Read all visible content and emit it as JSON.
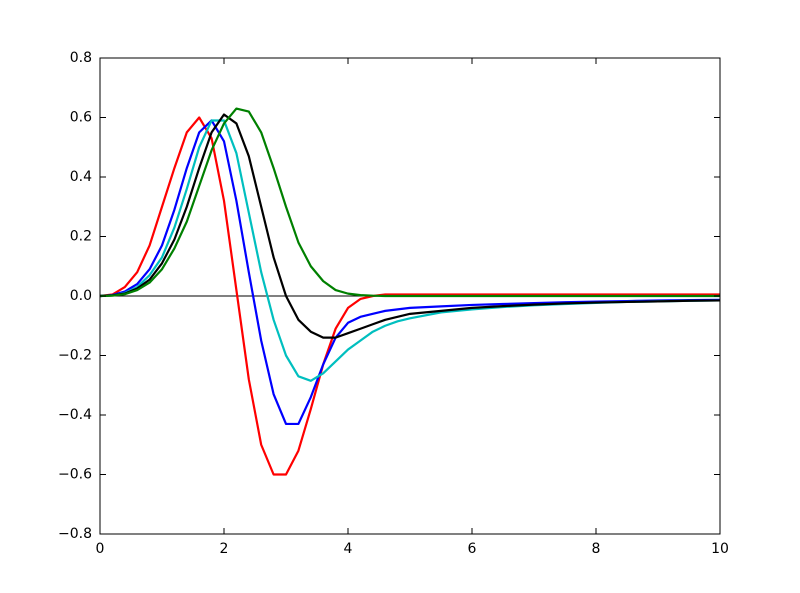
{
  "chart_data": {
    "type": "line",
    "x": [
      0,
      0.2,
      0.4,
      0.6,
      0.8,
      1.0,
      1.2,
      1.4,
      1.6,
      1.8,
      2.0,
      2.2,
      2.4,
      2.6,
      2.8,
      3.0,
      3.2,
      3.4,
      3.6,
      3.8,
      4.0,
      4.2,
      4.4,
      4.6,
      4.8,
      5.0,
      5.5,
      6,
      6.5,
      7,
      7.5,
      8,
      8.5,
      9,
      9.5,
      10
    ],
    "series": [
      {
        "color": "#ff0000",
        "values": [
          0,
          0.005,
          0.03,
          0.08,
          0.17,
          0.3,
          0.43,
          0.55,
          0.6,
          0.53,
          0.32,
          0.02,
          -0.28,
          -0.5,
          -0.6,
          -0.6,
          -0.52,
          -0.38,
          -0.23,
          -0.11,
          -0.04,
          -0.01,
          0,
          0.005,
          0.005,
          0.005,
          0.005,
          0.005,
          0.005,
          0.005,
          0.005,
          0.005,
          0.005,
          0.005,
          0.005,
          0.005
        ]
      },
      {
        "color": "#0000ff",
        "values": [
          0,
          0.003,
          0.015,
          0.04,
          0.09,
          0.17,
          0.29,
          0.43,
          0.55,
          0.59,
          0.52,
          0.32,
          0.08,
          -0.15,
          -0.33,
          -0.43,
          -0.43,
          -0.34,
          -0.23,
          -0.14,
          -0.09,
          -0.07,
          -0.06,
          -0.05,
          -0.045,
          -0.04,
          -0.035,
          -0.03,
          -0.027,
          -0.024,
          -0.021,
          -0.019,
          -0.017,
          -0.015,
          -0.014,
          -0.013
        ]
      },
      {
        "color": "#00bfbf",
        "values": [
          0,
          0.002,
          0.01,
          0.03,
          0.07,
          0.13,
          0.23,
          0.36,
          0.5,
          0.59,
          0.59,
          0.48,
          0.28,
          0.08,
          -0.08,
          -0.2,
          -0.27,
          -0.285,
          -0.26,
          -0.22,
          -0.18,
          -0.15,
          -0.12,
          -0.1,
          -0.085,
          -0.075,
          -0.055,
          -0.045,
          -0.037,
          -0.031,
          -0.027,
          -0.023,
          -0.02,
          -0.018,
          -0.016,
          -0.015
        ]
      },
      {
        "color": "#000000",
        "values": [
          0,
          0.002,
          0.008,
          0.025,
          0.055,
          0.11,
          0.19,
          0.3,
          0.43,
          0.55,
          0.61,
          0.58,
          0.47,
          0.3,
          0.13,
          0.0,
          -0.08,
          -0.12,
          -0.14,
          -0.14,
          -0.125,
          -0.11,
          -0.095,
          -0.08,
          -0.07,
          -0.06,
          -0.05,
          -0.04,
          -0.034,
          -0.029,
          -0.025,
          -0.022,
          -0.02,
          -0.018,
          -0.016,
          -0.015
        ]
      },
      {
        "color": "#008000",
        "values": [
          0,
          0.001,
          0.006,
          0.02,
          0.045,
          0.09,
          0.16,
          0.25,
          0.37,
          0.49,
          0.58,
          0.63,
          0.62,
          0.55,
          0.43,
          0.3,
          0.18,
          0.1,
          0.05,
          0.02,
          0.008,
          0.003,
          0.001,
          0,
          0,
          0,
          0,
          0,
          0,
          0,
          0,
          0,
          0,
          0,
          0,
          0
        ]
      }
    ],
    "hline": 0,
    "xlim": [
      0,
      10
    ],
    "xticks": [
      0,
      2,
      4,
      6,
      8,
      10
    ],
    "ylim": [
      -0.8,
      0.8
    ],
    "yticks": [
      {
        "value": -0.8,
        "label": "−0.8"
      },
      {
        "value": -0.6,
        "label": "−0.6"
      },
      {
        "value": -0.4,
        "label": "−0.4"
      },
      {
        "value": -0.2,
        "label": "−0.2"
      },
      {
        "value": 0,
        "label": "0.0"
      },
      0.2,
      0.4,
      0.6,
      0.8
    ],
    "grid": false
  }
}
